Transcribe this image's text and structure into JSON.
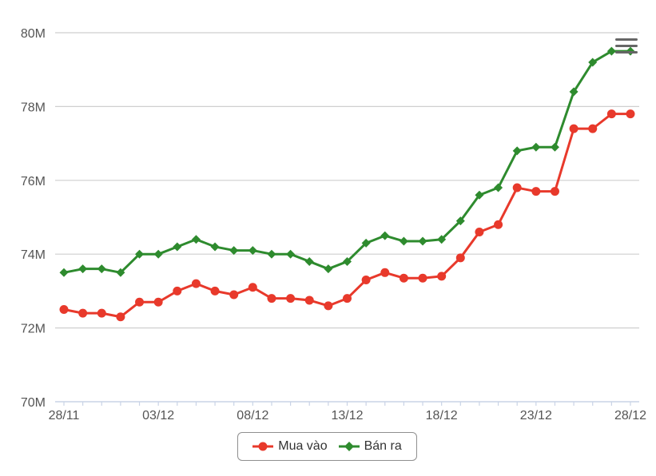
{
  "chart_data": {
    "type": "line",
    "title": "",
    "xlabel": "",
    "ylabel": "",
    "ylim": [
      70,
      80
    ],
    "yticks": [
      "70M",
      "72M",
      "74M",
      "76M",
      "78M",
      "80M"
    ],
    "ytick_values": [
      70,
      72,
      74,
      76,
      78,
      80
    ],
    "x": [
      "28/11",
      "29/11",
      "30/11",
      "01/12",
      "02/12",
      "03/12",
      "04/12",
      "05/12",
      "06/12",
      "07/12",
      "08/12",
      "09/12",
      "10/12",
      "11/12",
      "12/12",
      "13/12",
      "14/12",
      "15/12",
      "16/12",
      "17/12",
      "18/12",
      "19/12",
      "20/12",
      "21/12",
      "22/12",
      "23/12",
      "24/12",
      "25/12",
      "26/12",
      "27/12",
      "28/12"
    ],
    "xtick_labels": [
      "28/11",
      "03/12",
      "08/12",
      "13/12",
      "18/12",
      "23/12",
      "28/12"
    ],
    "xtick_indices": [
      0,
      5,
      10,
      15,
      20,
      25,
      30
    ],
    "grid": true,
    "legend_position": "bottom-center",
    "series": [
      {
        "name": "Mua vào",
        "color": "#e8392b",
        "marker": "circle",
        "values": [
          72.5,
          72.4,
          72.4,
          72.3,
          72.7,
          72.7,
          73.0,
          73.2,
          73.0,
          72.9,
          73.1,
          72.8,
          72.8,
          72.75,
          72.6,
          72.8,
          73.3,
          73.5,
          73.35,
          73.35,
          73.4,
          73.9,
          74.6,
          74.8,
          75.8,
          75.7,
          75.7,
          77.4,
          77.4,
          77.8,
          77.8
        ]
      },
      {
        "name": "Bán ra",
        "color": "#2e8b2e",
        "marker": "diamond",
        "values": [
          73.5,
          73.6,
          73.6,
          73.5,
          74.0,
          74.0,
          74.2,
          74.4,
          74.2,
          74.1,
          74.1,
          74.0,
          74.0,
          73.8,
          73.6,
          73.8,
          74.3,
          74.5,
          74.35,
          74.35,
          74.4,
          74.9,
          75.6,
          75.8,
          76.8,
          76.9,
          76.9,
          78.4,
          79.2,
          79.5,
          79.5
        ]
      }
    ]
  },
  "toolbar": {
    "menu_icon": "hamburger-menu-icon"
  }
}
